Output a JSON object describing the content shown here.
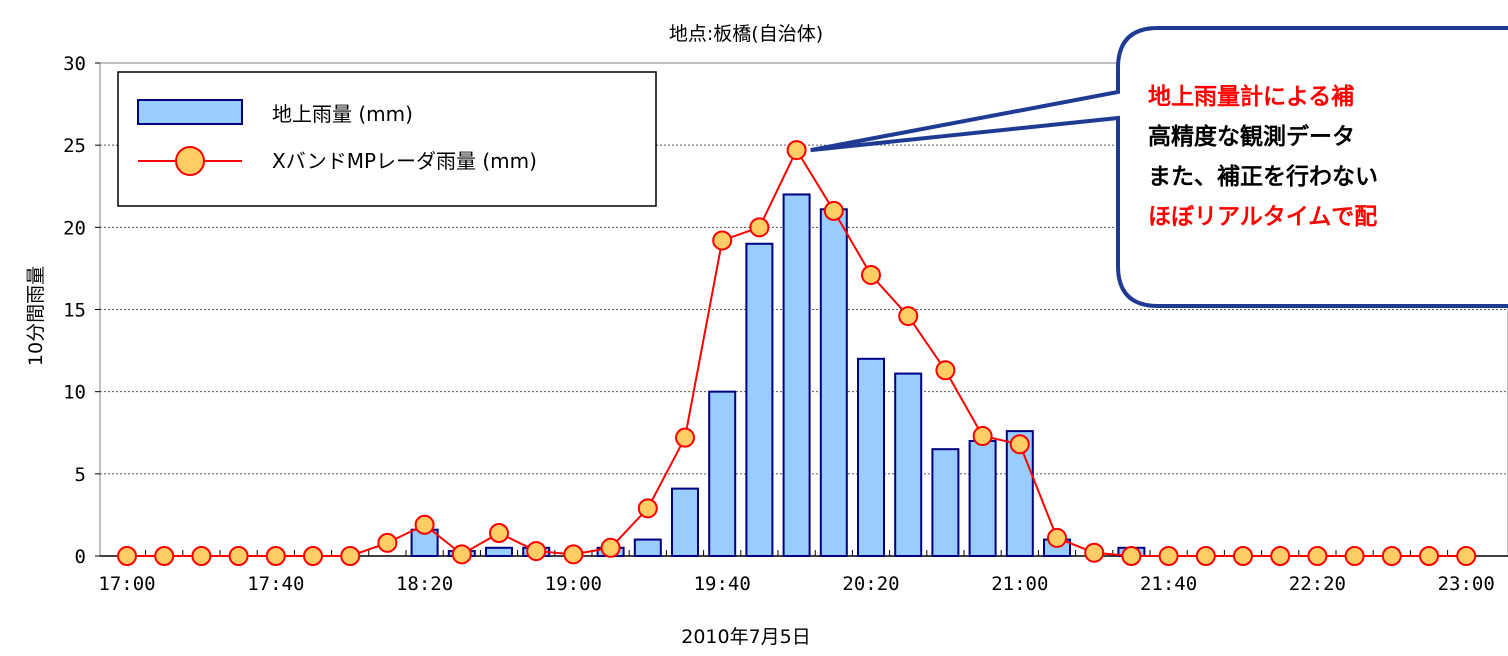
{
  "chart_data": {
    "type": "bar",
    "title": "地点:板橋(自治体)",
    "xlabel": "2010年7月5日",
    "ylabel": "10分間雨量",
    "ylim": [
      0,
      30
    ],
    "yticks": [
      0,
      5,
      10,
      15,
      20,
      25,
      30
    ],
    "xtick_labels": [
      "17:00",
      "17:40",
      "18:20",
      "19:00",
      "19:40",
      "20:20",
      "21:00",
      "21:40",
      "22:20",
      "23:00"
    ],
    "grid": true,
    "legend_position": "top-left",
    "x": [
      "17:00",
      "17:10",
      "17:20",
      "17:30",
      "17:40",
      "17:50",
      "18:00",
      "18:10",
      "18:20",
      "18:30",
      "18:40",
      "18:50",
      "19:00",
      "19:10",
      "19:20",
      "19:30",
      "19:40",
      "19:50",
      "20:00",
      "20:10",
      "20:20",
      "20:30",
      "20:40",
      "20:50",
      "21:00",
      "21:10",
      "21:20",
      "21:30",
      "21:40",
      "21:50",
      "22:00",
      "22:10",
      "22:20",
      "22:30",
      "22:40",
      "22:50",
      "23:00"
    ],
    "series": [
      {
        "name": "地上雨量 (mm)",
        "type": "bar",
        "color": "#99ccff",
        "edge_color": "#000080",
        "values": [
          0,
          0,
          0,
          0,
          0,
          0,
          0,
          0,
          1.6,
          0.3,
          0.5,
          0.5,
          0,
          0.5,
          1.0,
          4.1,
          10.0,
          19.0,
          22.0,
          21.1,
          12.0,
          11.1,
          6.5,
          7.0,
          7.6,
          1.0,
          0,
          0.5,
          0,
          0,
          0,
          0,
          0,
          0,
          0,
          0,
          0
        ]
      },
      {
        "name": "XバンドMPレーダ雨量 (mm)",
        "type": "line",
        "color": "#ff0000",
        "marker_color": "#ffcc66",
        "values": [
          0,
          0,
          0,
          0,
          0,
          0,
          0,
          0.8,
          1.9,
          0.1,
          1.4,
          0.3,
          0.1,
          0.5,
          2.9,
          7.2,
          19.2,
          20.0,
          24.7,
          21.0,
          17.1,
          14.6,
          11.3,
          7.3,
          6.8,
          1.1,
          0.2,
          0,
          0,
          0,
          0,
          0,
          0,
          0,
          0,
          0,
          0
        ]
      }
    ]
  },
  "callout": {
    "lines": [
      "地上雨量計による補",
      "高精度な観測データ",
      "また、補正を行わない",
      "ほぼリアルタイムで配"
    ],
    "line_colors": [
      "#ff0000",
      "#000000",
      "#000000",
      "#ff0000"
    ],
    "border_color": "#1f3a93"
  }
}
